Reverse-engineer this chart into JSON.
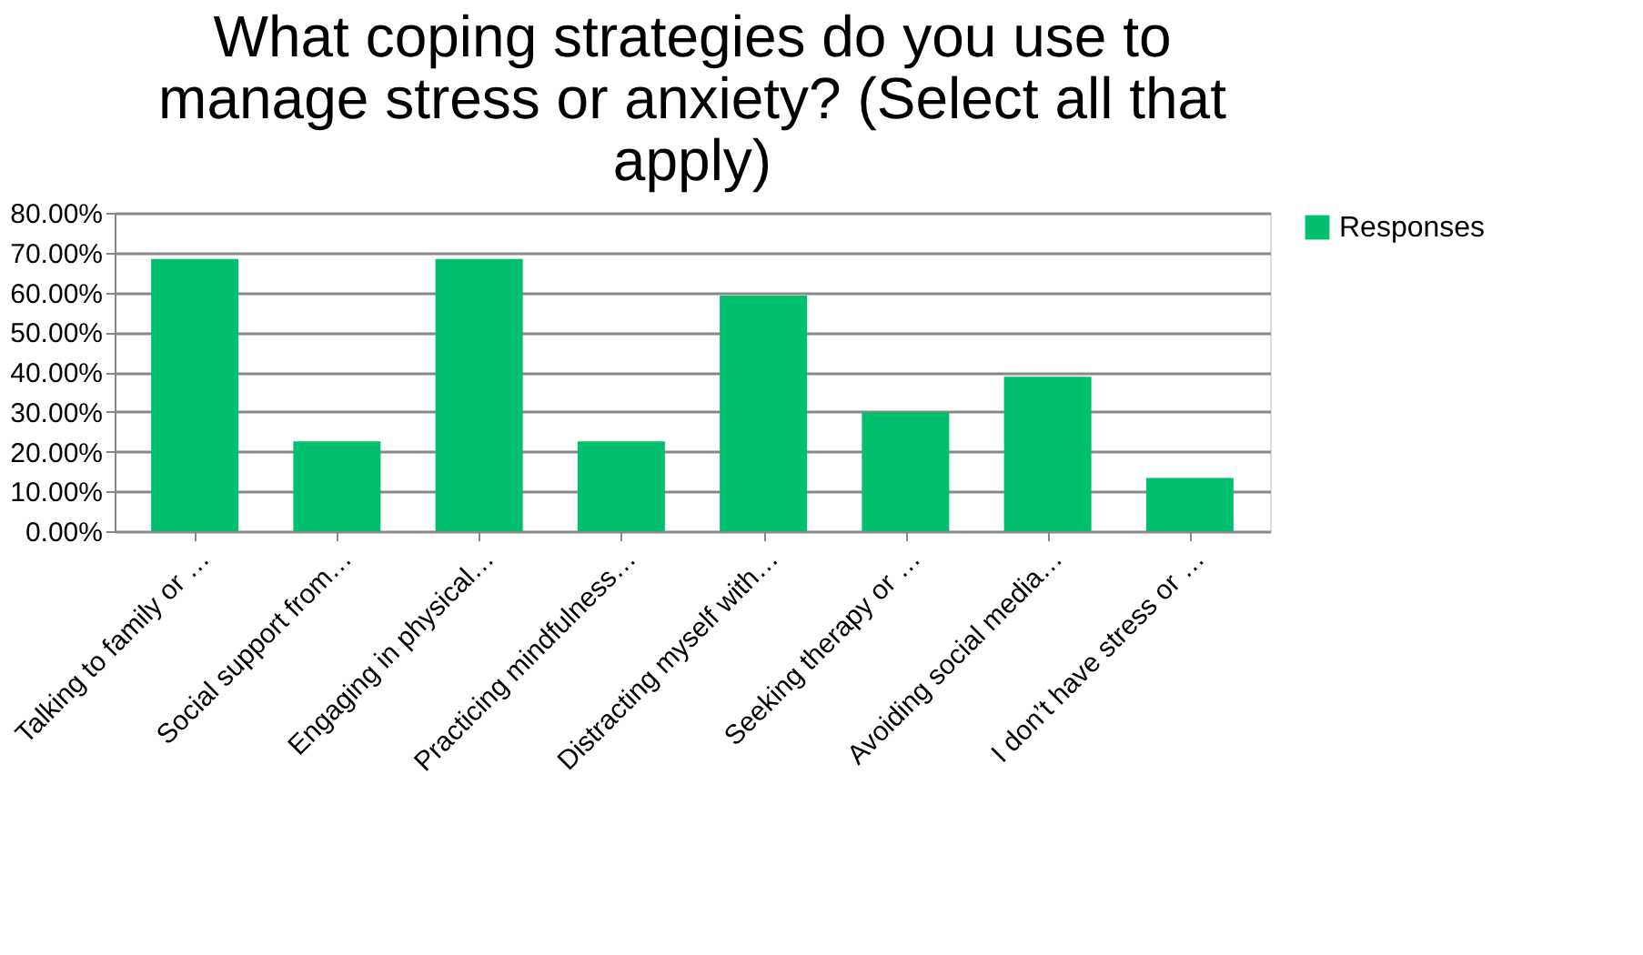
{
  "chart_data": {
    "type": "bar",
    "title": [
      "What coping strategies do you use to",
      "manage stress or anxiety? (Select all that",
      "apply)"
    ],
    "categories": [
      "Talking to family or …",
      "Social support from…",
      "Engaging in physical…",
      "Practicing mindfulness…",
      "Distracting myself with…",
      "Seeking therapy or …",
      "Avoiding social media…",
      "I don’t have stress or  …"
    ],
    "series": [
      {
        "name": "Responses",
        "color": "#00bf6f",
        "values": [
          68.4,
          22.6,
          68.4,
          22.6,
          59.2,
          29.9,
          38.8,
          13.4
        ]
      }
    ],
    "ylim": [
      0,
      80
    ],
    "yticks": [
      {
        "value": 0,
        "label": "0.00%"
      },
      {
        "value": 10,
        "label": "10.00%"
      },
      {
        "value": 20,
        "label": "20.00%"
      },
      {
        "value": 30,
        "label": "30.00%"
      },
      {
        "value": 40,
        "label": "40.00%"
      },
      {
        "value": 50,
        "label": "50.00%"
      },
      {
        "value": 60,
        "label": "60.00%"
      },
      {
        "value": 70,
        "label": "70.00%"
      },
      {
        "value": 80,
        "label": "80.00%"
      }
    ],
    "grid": "y",
    "legend": "right"
  }
}
